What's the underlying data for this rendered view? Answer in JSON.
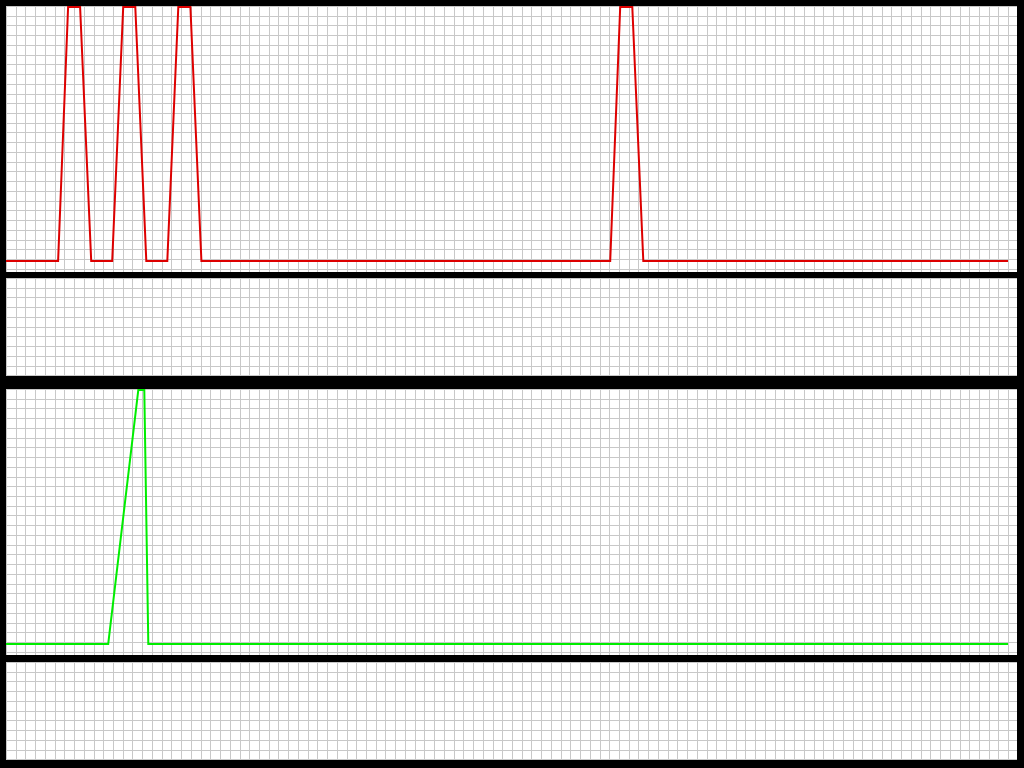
{
  "colors": {
    "background": "#000000",
    "panel": "#ffffff",
    "grid": "#c8c8c8",
    "series_red": "#dd0000",
    "series_green": "#00ee00"
  },
  "chart_data": [
    {
      "type": "line",
      "grid": true,
      "xlim": [
        0,
        100
      ],
      "ylim": [
        0,
        1
      ],
      "series": [
        {
          "color": "#dd0000",
          "points": [
            [
              0,
              0
            ],
            [
              5.2,
              0
            ],
            [
              6.2,
              1
            ],
            [
              7.4,
              1
            ],
            [
              8.5,
              0
            ],
            [
              10.6,
              0
            ],
            [
              11.7,
              1
            ],
            [
              12.9,
              1
            ],
            [
              14.0,
              0
            ],
            [
              16.1,
              0
            ],
            [
              17.2,
              1
            ],
            [
              18.4,
              1
            ],
            [
              19.5,
              0
            ],
            [
              60.3,
              0
            ],
            [
              61.3,
              1
            ],
            [
              62.5,
              1
            ],
            [
              63.6,
              0
            ],
            [
              100,
              0
            ]
          ]
        }
      ]
    },
    {
      "type": "line",
      "grid": true,
      "xlim": [
        0,
        100
      ],
      "ylim": [
        0,
        1
      ],
      "series": []
    },
    {
      "type": "line",
      "grid": true,
      "xlim": [
        0,
        100
      ],
      "ylim": [
        0,
        1
      ],
      "series": [
        {
          "color": "#00ee00",
          "points": [
            [
              0,
              0
            ],
            [
              10.2,
              0
            ],
            [
              13.2,
              1
            ],
            [
              13.8,
              1
            ],
            [
              14.2,
              0
            ],
            [
              100,
              0
            ]
          ]
        }
      ]
    },
    {
      "type": "line",
      "grid": true,
      "xlim": [
        0,
        100
      ],
      "ylim": [
        0,
        1
      ],
      "series": []
    }
  ]
}
